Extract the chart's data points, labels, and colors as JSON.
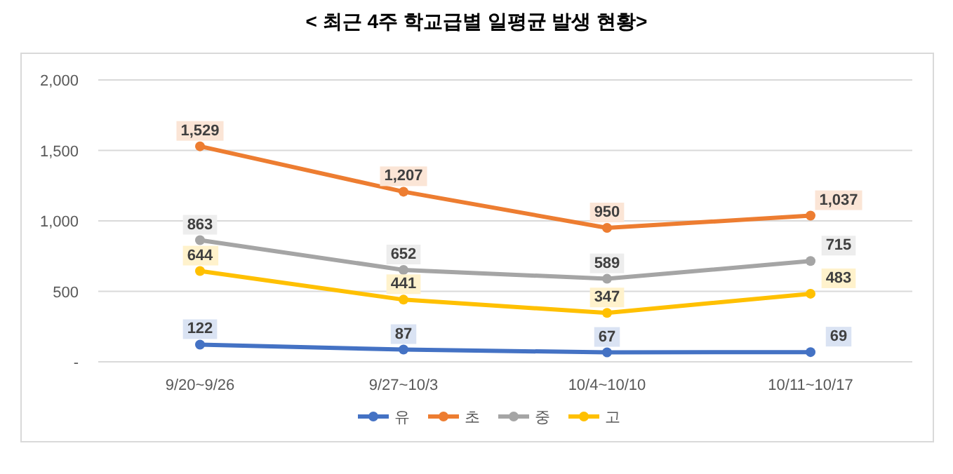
{
  "chart_data": {
    "type": "line",
    "title": "< 최근 4주 학교급별 일평균 발생 현황>",
    "categories": [
      "9/20~9/26",
      "9/27~10/3",
      "10/4~10/10",
      "10/11~10/17"
    ],
    "series": [
      {
        "name": "유",
        "color": "#4472c4",
        "values": [
          122,
          87,
          67,
          69
        ],
        "value_labels": [
          "122",
          "87",
          "67",
          "69"
        ]
      },
      {
        "name": "초",
        "color": "#ed7d31",
        "values": [
          1529,
          1207,
          950,
          1037
        ],
        "value_labels": [
          "1,529",
          "1,207",
          "950",
          "1,037"
        ]
      },
      {
        "name": "중",
        "color": "#a5a5a5",
        "values": [
          863,
          652,
          589,
          715
        ],
        "value_labels": [
          "863",
          "652",
          "589",
          "715"
        ]
      },
      {
        "name": "고",
        "color": "#ffc000",
        "values": [
          644,
          441,
          347,
          483
        ],
        "value_labels": [
          "644",
          "441",
          "347",
          "483"
        ]
      }
    ],
    "ylim": [
      0,
      2000
    ],
    "yticks": [
      {
        "value": 0,
        "label": "-"
      },
      {
        "value": 500,
        "label": "500"
      },
      {
        "value": 1000,
        "label": "1,000"
      },
      {
        "value": 1500,
        "label": "1,500"
      },
      {
        "value": 2000,
        "label": "2,000"
      }
    ],
    "grid": "y",
    "legend": "bottom",
    "marker": "circle",
    "line_style": "solid"
  }
}
